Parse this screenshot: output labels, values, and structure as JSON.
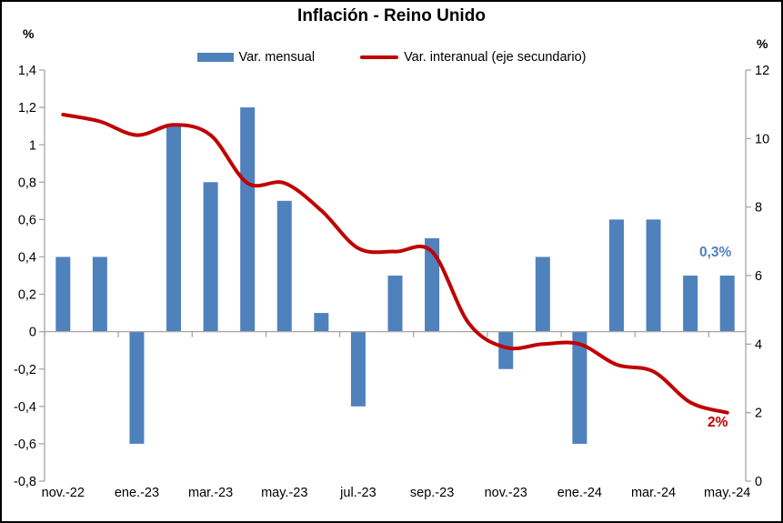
{
  "title": "Inflación - Reino Unido",
  "left_axis": {
    "unit": "%",
    "labels": [
      "1,4",
      "1,2",
      "1",
      "0,8",
      "0,6",
      "0,4",
      "0,2",
      "0",
      "-0,2",
      "-0,4",
      "-0,6",
      "-0,8"
    ],
    "values": [
      1.4,
      1.2,
      1,
      0.8,
      0.6,
      0.4,
      0.2,
      0,
      -0.2,
      -0.4,
      -0.6,
      -0.8
    ]
  },
  "right_axis": {
    "unit": "%",
    "labels": [
      "12",
      "10",
      "8",
      "6",
      "4",
      "2",
      "0"
    ],
    "values": [
      12,
      10,
      8,
      6,
      4,
      2,
      0
    ]
  },
  "legend": {
    "items": [
      {
        "label": "Var. mensual",
        "type": "bar"
      },
      {
        "label": "Var. interanual (eje secundario)",
        "type": "line"
      }
    ]
  },
  "annotations": {
    "bar_label": "0,3%",
    "line_label": "2%"
  },
  "colors": {
    "bar": "#4F81BD",
    "line": "#C00000",
    "axis": "#A6A6A6",
    "text": "#000000"
  },
  "chart_data": {
    "type": "combo",
    "categories": [
      "nov.-22",
      "dic.-22",
      "ene.-23",
      "feb.-23",
      "mar.-23",
      "abr.-23",
      "may.-23",
      "jun.-23",
      "jul.-23",
      "ago.-23",
      "sep.-23",
      "oct.-23",
      "nov.-23",
      "dic.-23",
      "ene.-24",
      "feb.-24",
      "mar.-24",
      "abr.-24",
      "may.-24"
    ],
    "series": [
      {
        "name": "Var. mensual",
        "type": "bar",
        "axis": "left",
        "color": "#4F81BD",
        "values": [
          0.4,
          0.4,
          -0.6,
          1.1,
          0.8,
          1.2,
          0.7,
          0.1,
          -0.4,
          0.3,
          0.5,
          0.0,
          -0.2,
          0.4,
          -0.6,
          0.6,
          0.6,
          0.3,
          0.3
        ]
      },
      {
        "name": "Var. interanual (eje secundario)",
        "type": "line",
        "axis": "right",
        "color": "#C00000",
        "values": [
          10.7,
          10.5,
          10.1,
          10.4,
          10.1,
          8.7,
          8.7,
          7.9,
          6.8,
          6.7,
          6.7,
          4.6,
          3.9,
          4.0,
          4.0,
          3.4,
          3.2,
          2.3,
          2.0
        ]
      }
    ],
    "title": "Inflación - Reino Unido",
    "xlabel": "",
    "ylabel_left": "%",
    "ylabel_right": "%",
    "left_ylim": [
      -0.8,
      1.4
    ],
    "right_ylim": [
      0,
      12
    ],
    "x_tick_indices": [
      0,
      2,
      4,
      6,
      8,
      10,
      12,
      14,
      16,
      18
    ],
    "x_tick_labels": [
      "nov.-22",
      "ene.-23",
      "mar.-23",
      "may.-23",
      "jul.-23",
      "sep.-23",
      "nov.-23",
      "ene.-24",
      "mar.-24",
      "may.-24"
    ],
    "grid": false,
    "legend_position": "top"
  }
}
